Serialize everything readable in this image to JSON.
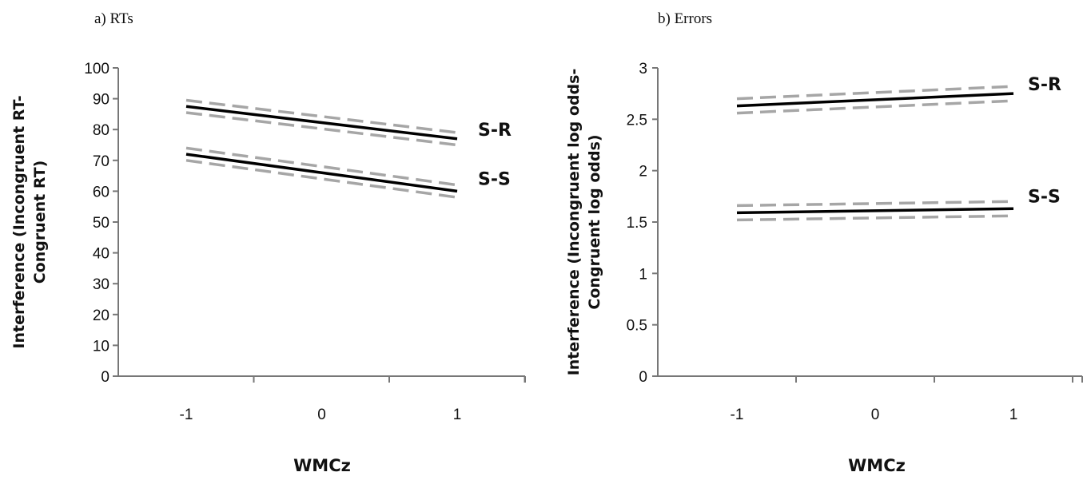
{
  "chart_data": [
    {
      "type": "line",
      "title": "a) RTs",
      "xlabel": "WMCz",
      "ylabel": [
        "Interference  (Incongruent RT-",
        "Congruent RT)"
      ],
      "x": [
        -1,
        1
      ],
      "xticks": [
        "-1",
        "0",
        "1"
      ],
      "ylim": [
        0,
        100
      ],
      "yticks": [
        "0",
        "10",
        "20",
        "30",
        "40",
        "50",
        "60",
        "70",
        "80",
        "90",
        "100"
      ],
      "grid": false,
      "series": [
        {
          "name": "S-R",
          "values": [
            87.5,
            77
          ],
          "ci_upper": [
            89.5,
            79
          ],
          "ci_lower": [
            85.5,
            75
          ]
        },
        {
          "name": "S-S",
          "values": [
            72,
            60
          ],
          "ci_upper": [
            74,
            62
          ],
          "ci_lower": [
            70,
            58
          ]
        }
      ],
      "colors": {
        "line": "#000000",
        "ci": "#a6a6a6"
      }
    },
    {
      "type": "line",
      "title": "b) Errors",
      "xlabel": "WMCz",
      "ylabel": [
        "Interference  (Incongruent log odds-",
        "Congruent log odds)"
      ],
      "x": [
        -1,
        1
      ],
      "xticks": [
        "-1",
        "0",
        "1"
      ],
      "ylim": [
        0,
        3
      ],
      "yticks": [
        "0",
        "0.5",
        "1",
        "1.5",
        "2",
        "2.5",
        "3"
      ],
      "grid": false,
      "series": [
        {
          "name": "S-R",
          "values": [
            2.63,
            2.75
          ],
          "ci_upper": [
            2.7,
            2.82
          ],
          "ci_lower": [
            2.56,
            2.68
          ]
        },
        {
          "name": "S-S",
          "values": [
            1.59,
            1.63
          ],
          "ci_upper": [
            1.66,
            1.7
          ],
          "ci_lower": [
            1.52,
            1.56
          ]
        }
      ],
      "colors": {
        "line": "#000000",
        "ci": "#a6a6a6"
      }
    }
  ]
}
